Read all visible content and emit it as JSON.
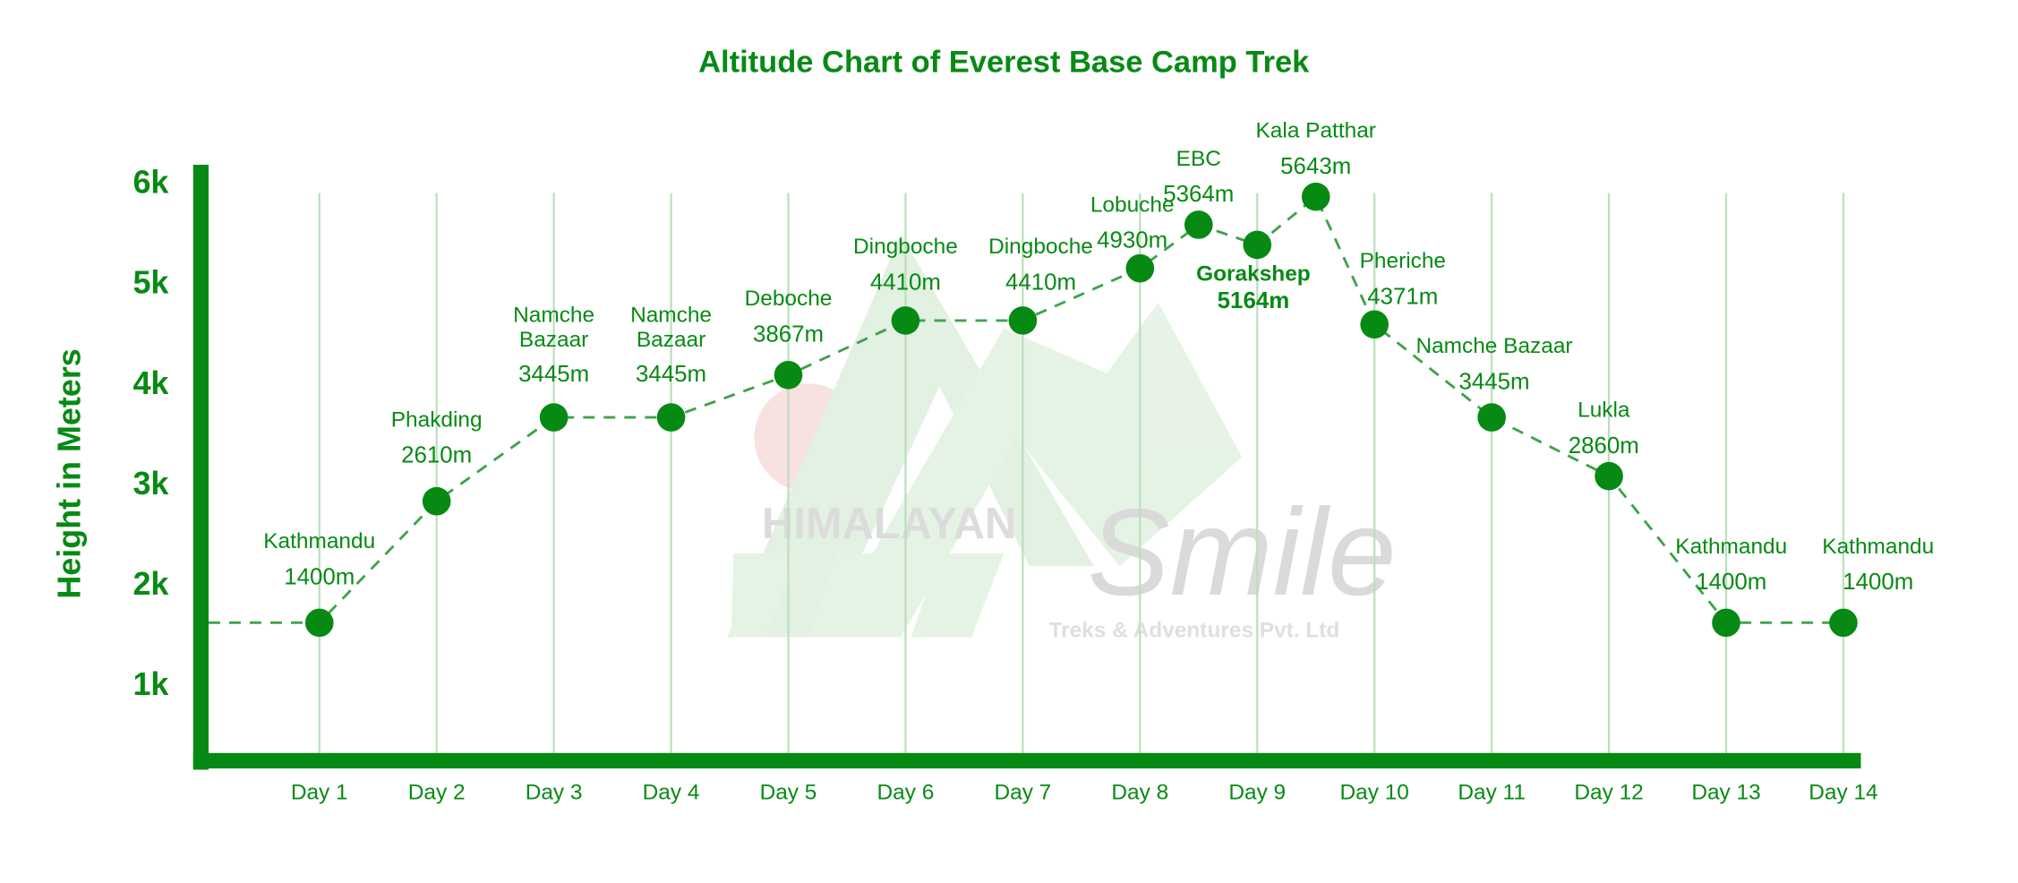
{
  "chart_data": {
    "type": "line",
    "title": "Altitude Chart of Everest Base Camp Trek",
    "ylabel": "Height in Meters",
    "xlabel": "",
    "y_ticks": [
      "1k",
      "2k",
      "3k",
      "4k",
      "5k",
      "6k"
    ],
    "y_tick_values": [
      1000,
      2000,
      3000,
      4000,
      5000,
      6000
    ],
    "x_ticks": [
      "Day 1",
      "Day 2",
      "Day 3",
      "Day 4",
      "Day 5",
      "Day 6",
      "Day 7",
      "Day 8",
      "Day 9",
      "Day 10",
      "Day 11",
      "Day 12",
      "Day 13",
      "Day 14"
    ],
    "ylim": [
      0,
      6300
    ],
    "xlim": [
      0,
      14.2
    ],
    "grid": "vertical",
    "line_style": "dashed",
    "points": [
      {
        "day": 1,
        "name": [
          "Kathmandu"
        ],
        "altitude": "1400m",
        "value": 1400
      },
      {
        "day": 2,
        "name": [
          "Phakding"
        ],
        "altitude": "2610m",
        "value": 2610
      },
      {
        "day": 3,
        "name": [
          "Namche",
          "Bazaar"
        ],
        "altitude": "3445m",
        "value": 3445
      },
      {
        "day": 4,
        "name": [
          "Namche",
          "Bazaar"
        ],
        "altitude": "3445m",
        "value": 3445
      },
      {
        "day": 5,
        "name": [
          "Deboche"
        ],
        "altitude": "3867m",
        "value": 3867
      },
      {
        "day": 6,
        "name": [
          "Dingboche"
        ],
        "altitude": "4410m",
        "value": 4410
      },
      {
        "day": 7,
        "name": [
          "Dingboche"
        ],
        "altitude": "4410m",
        "value": 4410
      },
      {
        "day": 8,
        "name": [
          "Lobuche"
        ],
        "altitude": "4930m",
        "value": 4930
      },
      {
        "day": 8.5,
        "name": [
          "EBC"
        ],
        "altitude": "5364m",
        "value": 5364
      },
      {
        "day": 9,
        "name": [
          "Gorakshep"
        ],
        "altitude": "5164m",
        "value": 5164
      },
      {
        "day": 9.5,
        "name": [
          "Kala Patthar"
        ],
        "altitude": "5643m",
        "value": 5643
      },
      {
        "day": 10,
        "name": [
          "Pheriche"
        ],
        "altitude": "4371m",
        "value": 4371
      },
      {
        "day": 11,
        "name": [
          "Namche Bazaar"
        ],
        "altitude": "3445m",
        "value": 3445
      },
      {
        "day": 12,
        "name": [
          "Lukla"
        ],
        "altitude": "2860m",
        "value": 2860
      },
      {
        "day": 13,
        "name": [
          "Kathmandu"
        ],
        "altitude": "1400m",
        "value": 1400
      },
      {
        "day": 14,
        "name": [
          "Kathmandu"
        ],
        "altitude": "1400m",
        "value": 1400
      }
    ],
    "colors": {
      "primary": "#078a14",
      "line": "#3fa34c",
      "grid": "#b9dfbc"
    }
  },
  "watermark": {
    "brand": "HIMALAYAN",
    "script": "Smile",
    "tagline": "Treks & Adventures Pvt. Ltd"
  }
}
